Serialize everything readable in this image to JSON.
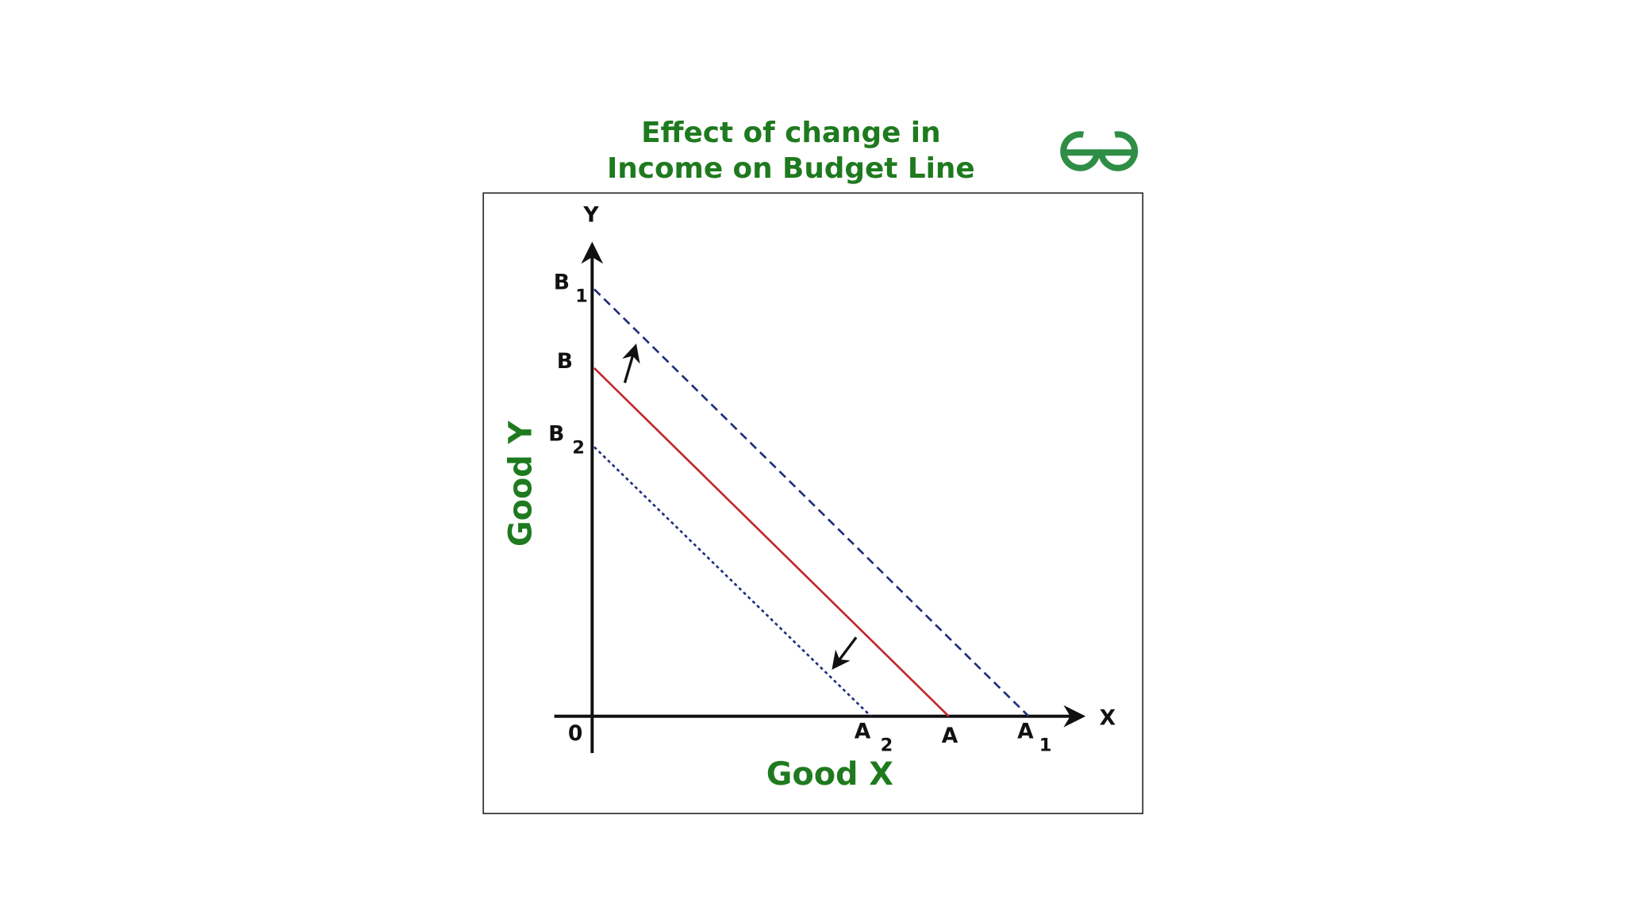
{
  "title": [
    "Effect of change in",
    "Income on Budget Line"
  ],
  "axes": {
    "y": "Y",
    "x": "X",
    "origin": "0",
    "y_title": "Good Y",
    "x_title": "Good X"
  },
  "points": {
    "b1": {
      "text": "B",
      "sub": "1"
    },
    "b": {
      "text": "B"
    },
    "b2": {
      "text": "B",
      "sub": "2"
    },
    "a2": {
      "text": "A",
      "sub": "2"
    },
    "a": {
      "text": "A"
    },
    "a1": {
      "text": "A",
      "sub": "1"
    }
  }
}
